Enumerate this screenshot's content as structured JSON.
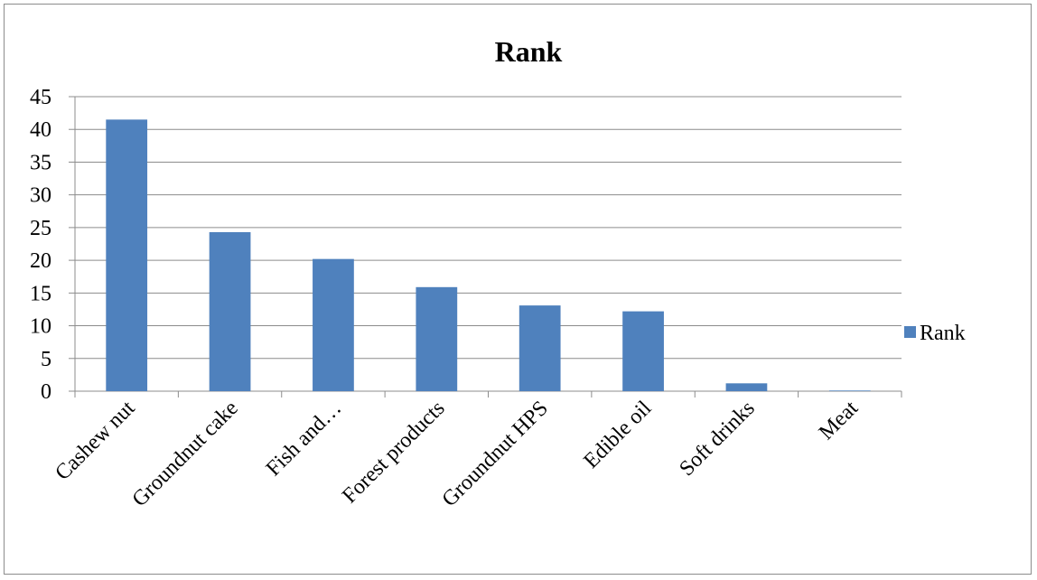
{
  "chart_data": {
    "type": "bar",
    "title": "Rank",
    "xlabel": "",
    "ylabel": "",
    "ylim": [
      0,
      45
    ],
    "yticks": [
      0,
      5,
      10,
      15,
      20,
      25,
      30,
      35,
      40,
      45
    ],
    "grid": true,
    "legend_position": "right",
    "categories": [
      "Cashew nut",
      "Groundnut cake",
      "Fish and…",
      "Forest products",
      "Groundnut HPS",
      "Edible oil",
      "Soft drinks",
      "Meat"
    ],
    "series": [
      {
        "name": "Rank",
        "color": "#4f81bd",
        "values": [
          41.5,
          24.3,
          20.2,
          15.9,
          13.1,
          12.2,
          1.2,
          0.1
        ]
      }
    ]
  }
}
